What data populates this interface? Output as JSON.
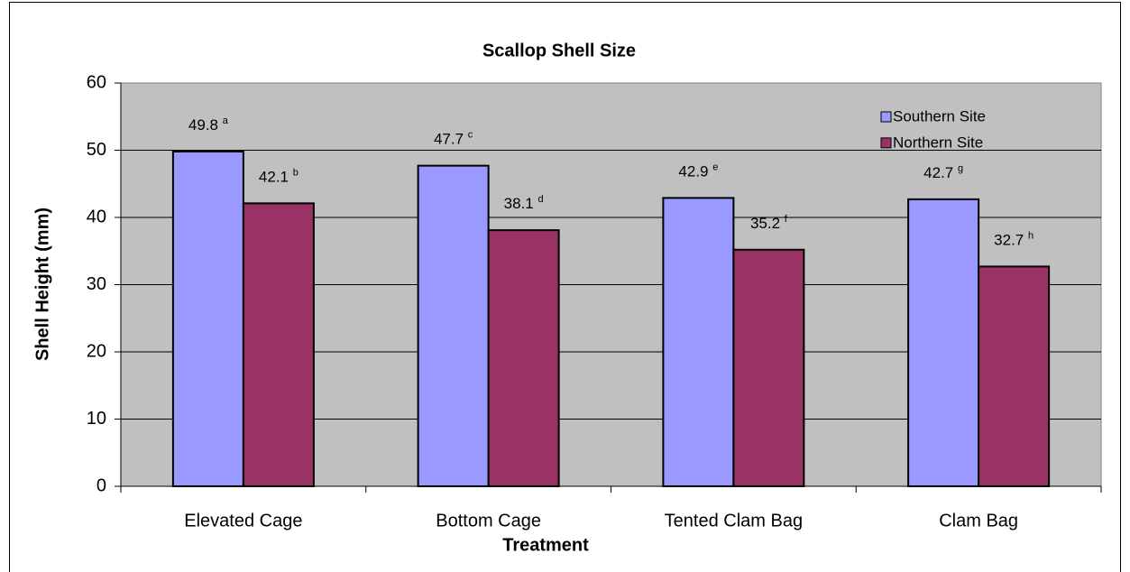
{
  "chart_data": {
    "type": "bar",
    "title": "Scallop Shell Size",
    "x_label": "Treatment",
    "y_label": "Shell Height (mm)",
    "categories": [
      "Elevated Cage",
      "Bottom Cage",
      "Tented Clam Bag",
      "Clam Bag"
    ],
    "series": [
      {
        "name": "Southern Site",
        "color": "#9999ff",
        "values": [
          49.8,
          47.7,
          42.9,
          42.7
        ],
        "value_labels": [
          "49.8 a",
          "47.7 c",
          "42.9 e",
          "42.7 g"
        ]
      },
      {
        "name": "Northern Site",
        "color": "#993366",
        "values": [
          42.1,
          38.1,
          35.2,
          32.7
        ],
        "value_labels": [
          "42.1 b",
          "38.1 d",
          "35.2 f",
          "32.7 h"
        ]
      }
    ],
    "ylim": [
      0,
      60
    ],
    "yticks": [
      0,
      10,
      20,
      30,
      40,
      50,
      60
    ],
    "grid": true,
    "legend": "top-right"
  }
}
